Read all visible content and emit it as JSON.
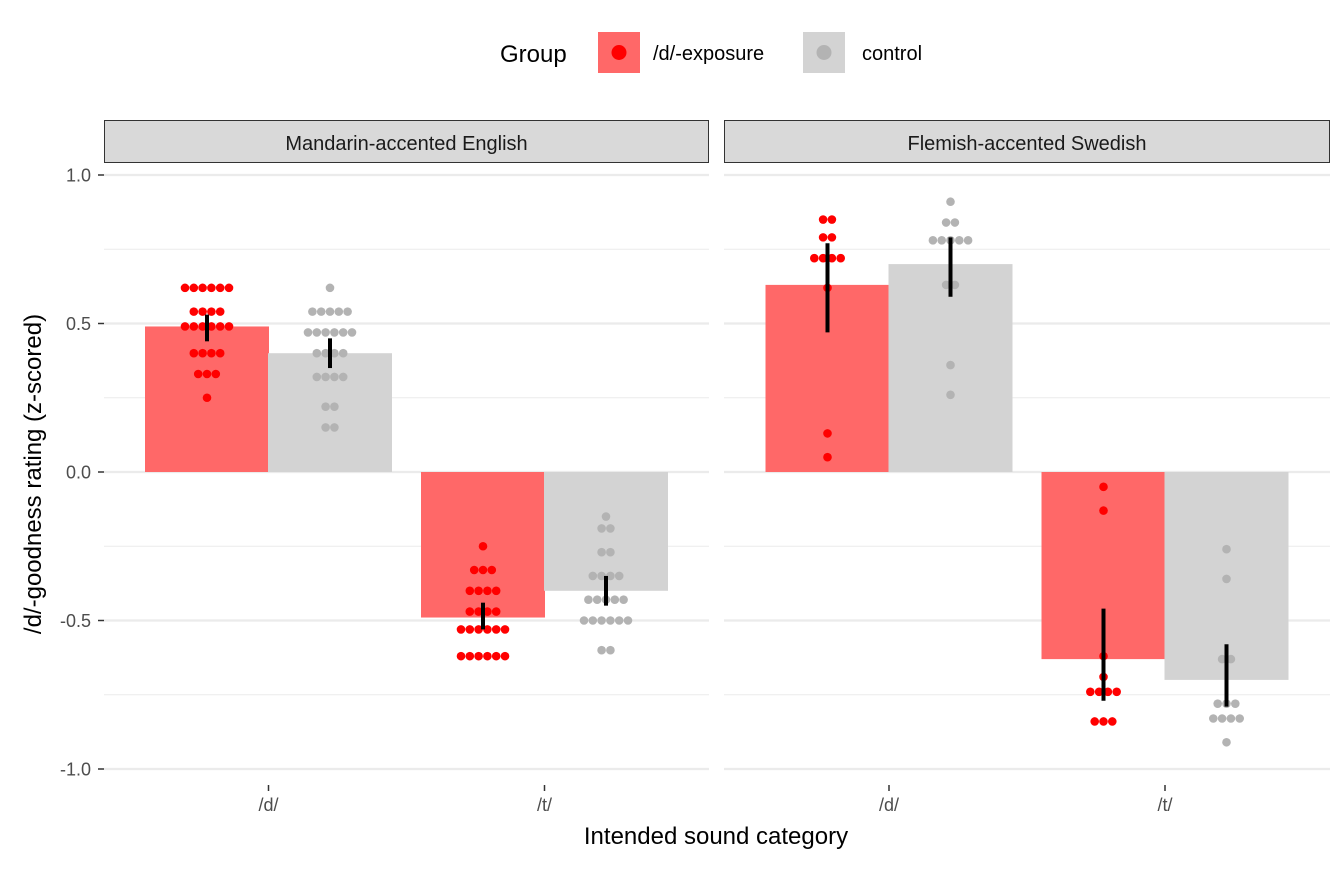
{
  "chart_data": {
    "type": "bar",
    "x_title": "Intended sound category",
    "y_title": "/d/-goodness rating (z-scored)",
    "ylim": [
      -1.0,
      1.0
    ],
    "y_ticks": [
      1.0,
      0.5,
      0.0,
      -0.5,
      -1.0
    ],
    "y_tick_labels": [
      "1.0",
      "0.5",
      "0.0",
      "-0.5",
      "-1.0"
    ],
    "categories": [
      "/d/",
      "/t/"
    ],
    "grid": true,
    "legend": {
      "position": "top",
      "title": "Group",
      "entries": [
        {
          "name": "/d/-exposure",
          "color": "#ff0000",
          "bar_color": "#ff6868"
        },
        {
          "name": "control",
          "color": "#b3b3b3",
          "bar_color": "#d3d3d3"
        }
      ]
    },
    "colors": {
      "panel_bg": "#ffffff",
      "grid": "#ebebeb",
      "strip_bg": "#d9d9d9",
      "strip_border": "#333333",
      "error_bar": "#000000"
    },
    "panels": [
      {
        "title": "Mandarin-accented English",
        "series": [
          {
            "name": "/d/-exposure",
            "values": [
              0.49,
              -0.49
            ],
            "ci": [
              [
                0.44,
                0.53
              ],
              [
                -0.53,
                -0.44
              ]
            ],
            "points": [
              [
                0.62,
                0.62,
                0.62,
                0.62,
                0.62,
                0.62,
                0.54,
                0.54,
                0.54,
                0.54,
                0.49,
                0.49,
                0.49,
                0.49,
                0.49,
                0.49,
                0.4,
                0.4,
                0.4,
                0.4,
                0.33,
                0.33,
                0.33,
                0.25
              ],
              [
                -0.25,
                -0.33,
                -0.33,
                -0.33,
                -0.4,
                -0.4,
                -0.4,
                -0.4,
                -0.47,
                -0.47,
                -0.47,
                -0.47,
                -0.53,
                -0.53,
                -0.53,
                -0.53,
                -0.53,
                -0.53,
                -0.62,
                -0.62,
                -0.62,
                -0.62,
                -0.62,
                -0.62
              ]
            ]
          },
          {
            "name": "control",
            "values": [
              0.4,
              -0.4
            ],
            "ci": [
              [
                0.35,
                0.45
              ],
              [
                -0.45,
                -0.35
              ]
            ],
            "points": [
              [
                0.62,
                0.54,
                0.54,
                0.54,
                0.54,
                0.54,
                0.47,
                0.47,
                0.47,
                0.47,
                0.47,
                0.47,
                0.4,
                0.4,
                0.4,
                0.4,
                0.32,
                0.32,
                0.32,
                0.32,
                0.22,
                0.22,
                0.15,
                0.15
              ],
              [
                -0.15,
                -0.19,
                -0.19,
                -0.27,
                -0.27,
                -0.35,
                -0.35,
                -0.35,
                -0.35,
                -0.43,
                -0.43,
                -0.43,
                -0.43,
                -0.43,
                -0.5,
                -0.5,
                -0.5,
                -0.5,
                -0.5,
                -0.5,
                -0.6,
                -0.6
              ]
            ]
          }
        ]
      },
      {
        "title": "Flemish-accented Swedish",
        "series": [
          {
            "name": "/d/-exposure",
            "values": [
              0.63,
              -0.63
            ],
            "ci": [
              [
                0.47,
                0.77
              ],
              [
                -0.77,
                -0.46
              ]
            ],
            "points": [
              [
                0.85,
                0.85,
                0.79,
                0.79,
                0.72,
                0.72,
                0.72,
                0.72,
                0.62,
                0.13,
                0.05
              ],
              [
                -0.05,
                -0.13,
                -0.62,
                -0.69,
                -0.74,
                -0.74,
                -0.74,
                -0.74,
                -0.84,
                -0.84,
                -0.84
              ]
            ]
          },
          {
            "name": "control",
            "values": [
              0.7,
              -0.7
            ],
            "ci": [
              [
                0.59,
                0.79
              ],
              [
                -0.79,
                -0.58
              ]
            ],
            "points": [
              [
                0.91,
                0.84,
                0.84,
                0.78,
                0.78,
                0.78,
                0.78,
                0.78,
                0.63,
                0.63,
                0.36,
                0.26
              ],
              [
                -0.26,
                -0.36,
                -0.63,
                -0.63,
                -0.78,
                -0.78,
                -0.78,
                -0.83,
                -0.83,
                -0.83,
                -0.83,
                -0.91
              ]
            ]
          }
        ]
      }
    ]
  }
}
